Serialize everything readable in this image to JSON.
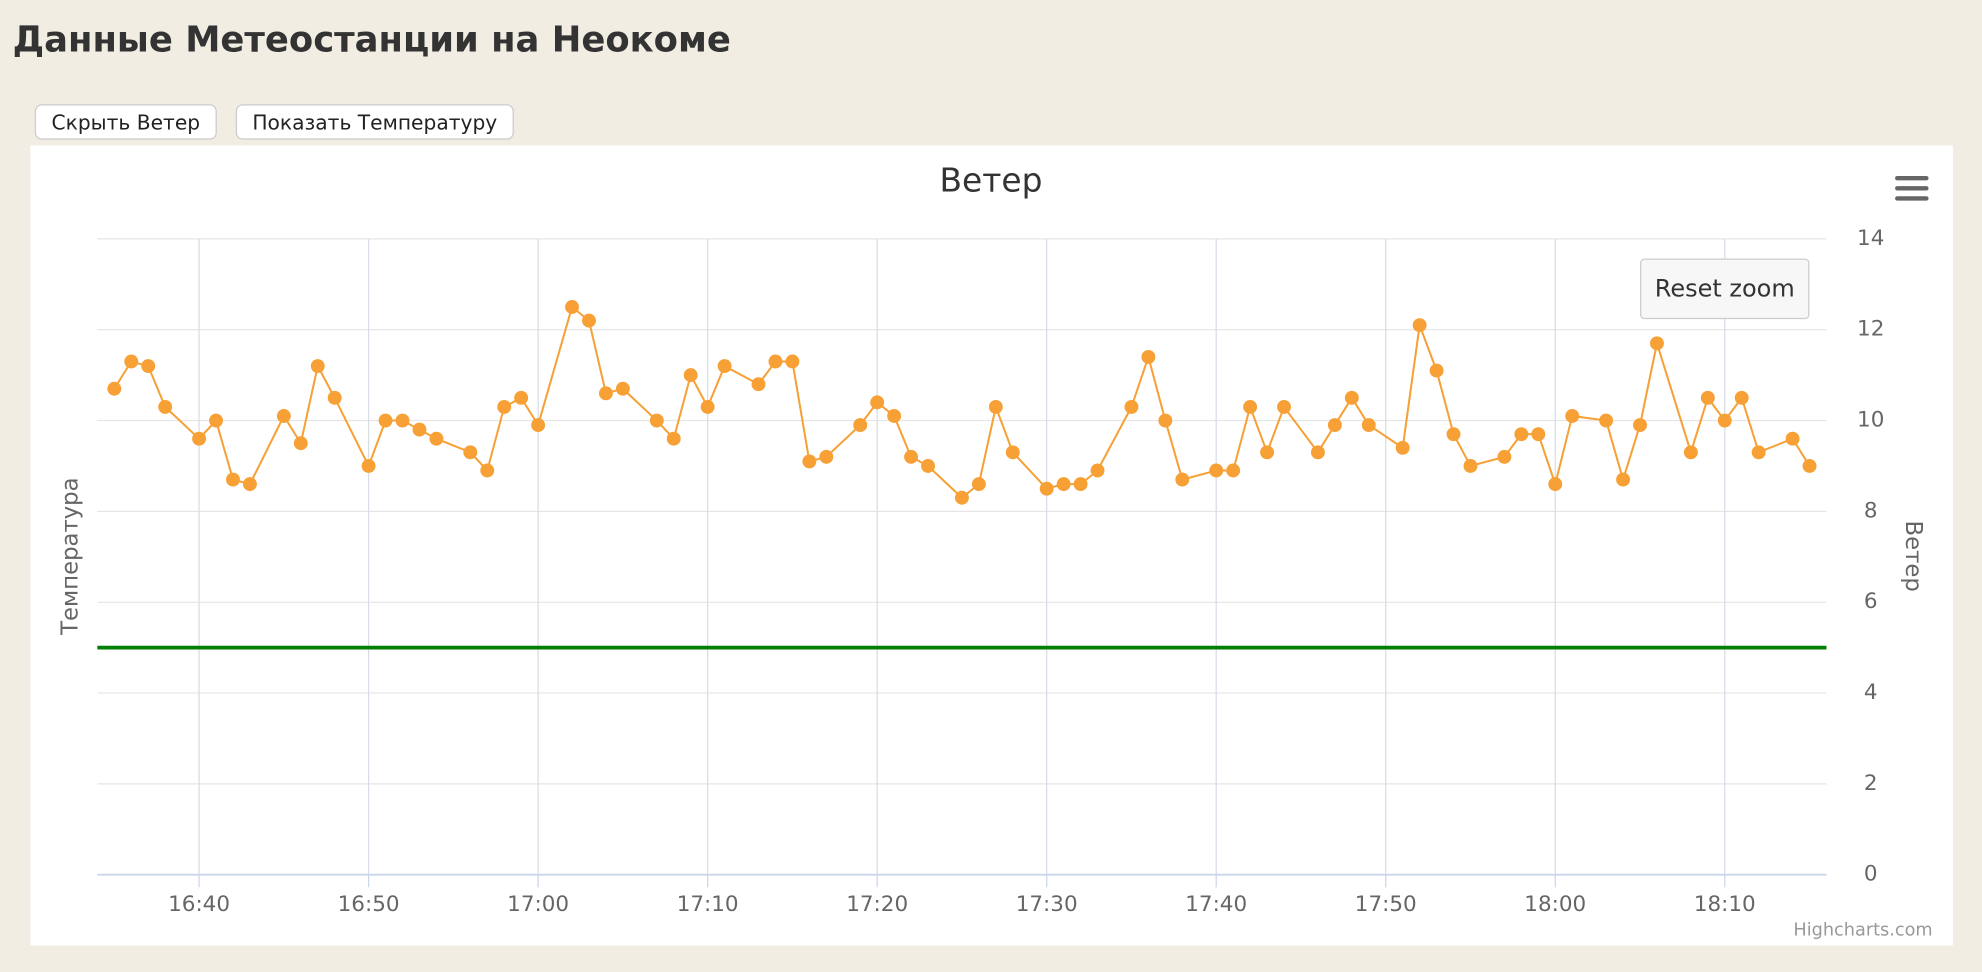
{
  "header": {
    "title": "Данные Метеостанции на Неокоме"
  },
  "buttons": [
    "Скрыть Ветер",
    "Показать Температуру"
  ],
  "chart_data": {
    "type": "line",
    "title": "Ветер",
    "y_label": "Температура",
    "y2_label": "Ветер",
    "reset_button": "Reset zoom",
    "credits": "Highcharts.com",
    "x": [
      "16:35",
      "16:36",
      "16:37",
      "16:38",
      "16:40",
      "16:41",
      "16:42",
      "16:43",
      "16:45",
      "16:46",
      "16:47",
      "16:48",
      "16:50",
      "16:51",
      "16:52",
      "16:53",
      "16:54",
      "16:56",
      "16:57",
      "16:58",
      "16:59",
      "17:00",
      "17:02",
      "17:03",
      "17:04",
      "17:05",
      "17:07",
      "17:08",
      "17:09",
      "17:10",
      "17:11",
      "17:13",
      "17:14",
      "17:15",
      "17:16",
      "17:17",
      "17:19",
      "17:20",
      "17:21",
      "17:22",
      "17:23",
      "17:25",
      "17:26",
      "17:27",
      "17:28",
      "17:30",
      "17:31",
      "17:32",
      "17:33",
      "17:35",
      "17:36",
      "17:37",
      "17:38",
      "17:40",
      "17:41",
      "17:42",
      "17:43",
      "17:44",
      "17:46",
      "17:47",
      "17:48",
      "17:49",
      "17:51",
      "17:52",
      "17:53",
      "17:54",
      "17:55",
      "17:57",
      "17:58",
      "17:59",
      "18:00",
      "18:01",
      "18:03",
      "18:04",
      "18:05",
      "18:06",
      "18:08",
      "18:09",
      "18:10",
      "18:11",
      "18:12",
      "18:14",
      "18:15"
    ],
    "series": [
      {
        "color": "#f7a035",
        "axis": "y2",
        "values": [
          10.7,
          11.3,
          11.2,
          10.3,
          9.6,
          10.0,
          8.7,
          8.6,
          10.1,
          9.5,
          11.2,
          10.5,
          9.0,
          10.0,
          10.0,
          9.8,
          9.6,
          9.3,
          8.9,
          10.3,
          10.5,
          9.9,
          12.5,
          12.2,
          10.6,
          10.7,
          10.0,
          9.6,
          11.0,
          10.3,
          11.2,
          10.8,
          11.3,
          11.3,
          9.1,
          9.2,
          9.9,
          10.4,
          10.1,
          9.2,
          9.0,
          8.3,
          8.6,
          10.3,
          9.3,
          8.5,
          8.6,
          8.6,
          8.9,
          10.3,
          11.4,
          10.0,
          8.7,
          8.9,
          8.9,
          10.3,
          9.3,
          10.3,
          9.3,
          9.9,
          10.5,
          9.9,
          9.4,
          12.1,
          11.1,
          9.7,
          9.0,
          9.2,
          9.7,
          9.7,
          8.6,
          10.1,
          10.0,
          8.7,
          9.9,
          11.7,
          9.3,
          10.5,
          10.0,
          10.5,
          9.3,
          9.6,
          9.0
        ]
      }
    ],
    "plot_line": {
      "value": 5,
      "color": "#007f00"
    },
    "xlim": [
      "16:34",
      "18:16"
    ],
    "xticks": [
      "16:40",
      "16:50",
      "17:00",
      "17:10",
      "17:20",
      "17:30",
      "17:40",
      "17:50",
      "18:00",
      "18:10"
    ],
    "y2lim": [
      0,
      14
    ],
    "y2ticks": [
      0,
      2,
      4,
      6,
      8,
      10,
      12,
      14
    ],
    "grid": true
  }
}
